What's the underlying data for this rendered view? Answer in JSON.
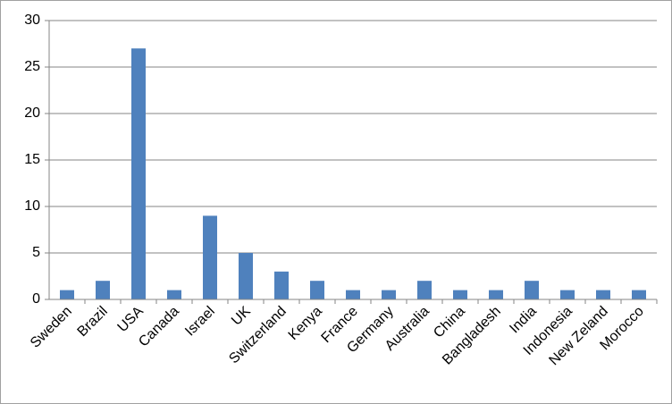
{
  "chart_data": {
    "type": "bar",
    "categories": [
      "Sweden",
      "Brazil",
      "USA",
      "Canada",
      "Israel",
      "UK",
      "Switzerland",
      "Kenya",
      "France",
      "Germany",
      "Australia",
      "China",
      "Bangladesh",
      "India",
      "Indonesia",
      "New Zeland",
      "Morocco"
    ],
    "values": [
      1,
      2,
      27,
      1,
      9,
      5,
      3,
      2,
      1,
      1,
      2,
      1,
      1,
      2,
      1,
      1,
      1
    ],
    "color": "#4f81bd",
    "ylim": [
      0,
      30
    ],
    "yticks": [
      0,
      5,
      10,
      15,
      20,
      25,
      30
    ],
    "grid": true
  }
}
